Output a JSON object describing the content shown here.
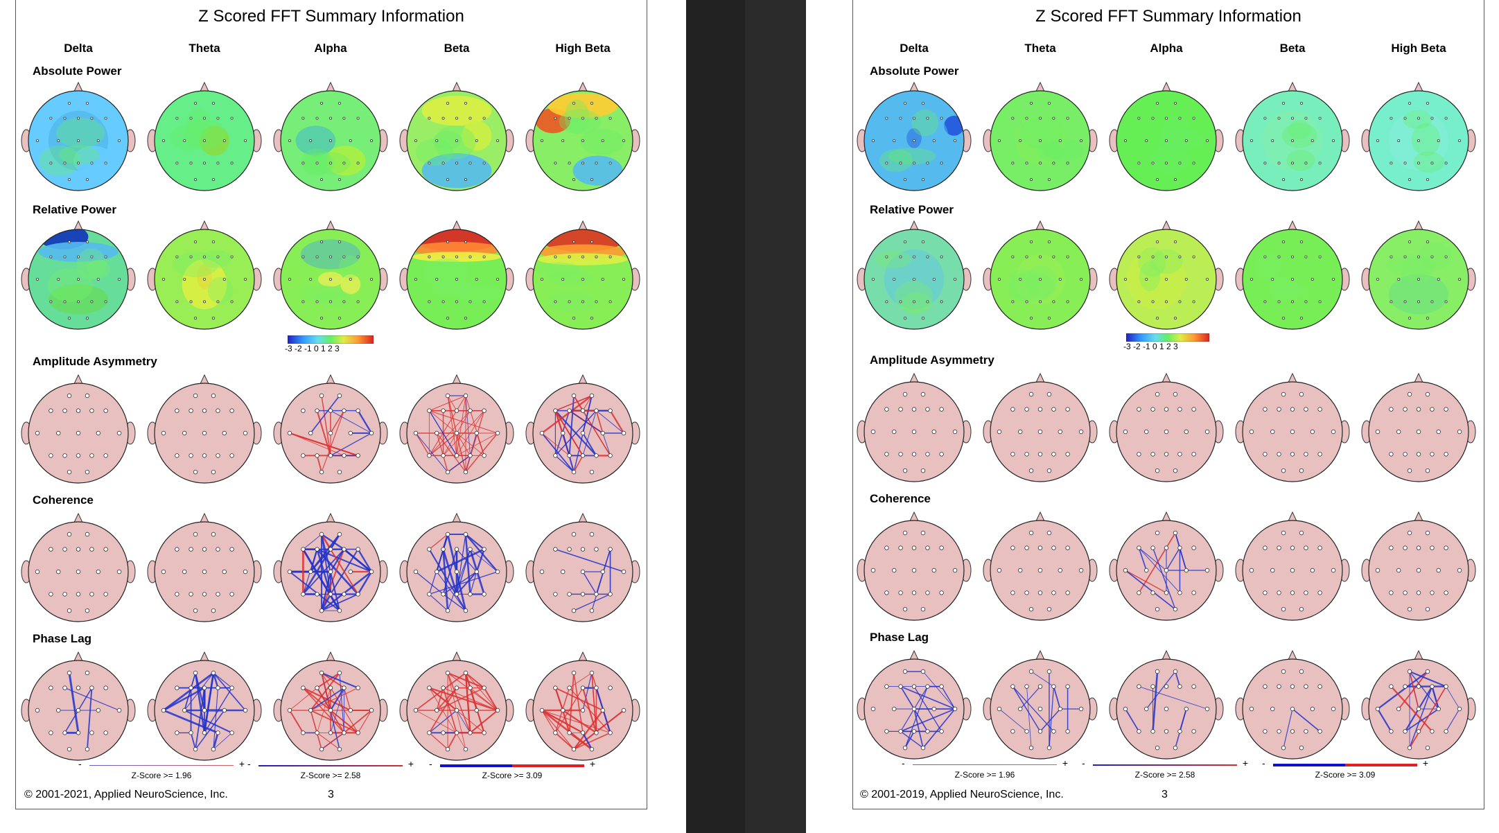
{
  "pages": [
    {
      "title": "Z Scored FFT Summary Information",
      "bands": [
        "Delta",
        "Theta",
        "Alpha",
        "Beta",
        "High Beta"
      ],
      "rows": [
        "Absolute Power",
        "Relative Power",
        "Amplitude Asymmetry",
        "Coherence",
        "Phase Lag"
      ],
      "colorbar_ticks": "-3  -2  -1   0   1   2   3",
      "legends": [
        {
          "text": "Z-Score >= 1.96",
          "minus": "-",
          "plus": "+"
        },
        {
          "text": "Z-Score >= 2.58",
          "minus": "-",
          "plus": "+"
        },
        {
          "text": "Z-Score >= 3.09",
          "minus": "-",
          "plus": "+"
        }
      ],
      "copyright": "© 2001-2021, Applied NeuroScience, Inc.",
      "page_number": "3",
      "power_maps": {
        "absolute": [
          "#66ccff",
          "#66ee88",
          "#77ee77",
          "#99ee66",
          "#88ee66"
        ],
        "relative": [
          "#66dd99",
          "#99ee55",
          "#88ee55",
          "#77ee55",
          "#88ee55"
        ]
      }
    },
    {
      "title": "Z Scored FFT Summary Information",
      "bands": [
        "Delta",
        "Theta",
        "Alpha",
        "Beta",
        "High Beta"
      ],
      "rows": [
        "Absolute Power",
        "Relative Power",
        "Amplitude Asymmetry",
        "Coherence",
        "Phase Lag"
      ],
      "colorbar_ticks": "-3  -2  -1   0   1   2   3",
      "legends": [
        {
          "text": "Z-Score >= 1.96",
          "minus": "-",
          "plus": "+"
        },
        {
          "text": "Z-Score >= 2.58",
          "minus": "-",
          "plus": "+"
        },
        {
          "text": "Z-Score >= 3.09",
          "minus": "-",
          "plus": "+"
        }
      ],
      "copyright": "© 2001-2019, Applied NeuroScience, Inc.",
      "page_number": "3",
      "power_maps": {
        "absolute": [
          "#55bbee",
          "#77ee66",
          "#66ee55",
          "#77eebb",
          "#77eecc"
        ],
        "relative": [
          "#77ddaa",
          "#88ee55",
          "#bbee55",
          "#77ee55",
          "#88ee66"
        ]
      }
    }
  ],
  "colors": {
    "positive": "#e03030",
    "negative": "#2030d0",
    "head_skin": "#e8c0c0"
  }
}
